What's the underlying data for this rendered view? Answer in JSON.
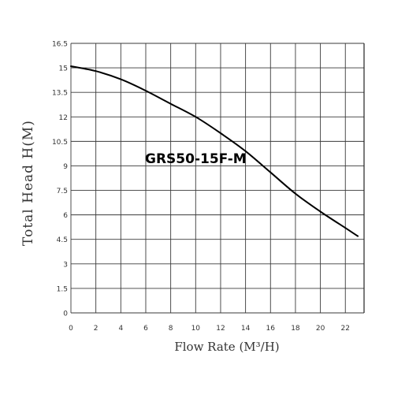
{
  "chart_data": {
    "type": "line",
    "title": "",
    "annotation": "GRS50-15F-M",
    "xlabel": "Flow Rate (M³/H)",
    "ylabel": "Total Head H(M)",
    "xlim": [
      0,
      23.5
    ],
    "ylim": [
      0,
      16.5
    ],
    "x_ticks": [
      "0",
      "2",
      "4",
      "6",
      "8",
      "10",
      "12",
      "14",
      "16",
      "18",
      "20",
      "22"
    ],
    "y_ticks": [
      "0",
      "1.5",
      "3",
      "4.5",
      "6",
      "7.5",
      "9",
      "10.5",
      "12",
      "13.5",
      "15",
      "16.5"
    ],
    "grid": true,
    "series": [
      {
        "x": [
          0,
          2,
          4,
          6,
          8,
          10,
          12,
          14,
          16,
          18,
          20,
          22,
          23
        ],
        "y": [
          15.1,
          14.8,
          14.3,
          13.6,
          12.8,
          12.0,
          11.0,
          9.9,
          8.6,
          7.3,
          6.2,
          5.2,
          4.7
        ]
      }
    ],
    "colors": {
      "line": "#000000",
      "grid": "#3a3a3a",
      "text": "#333333"
    }
  }
}
